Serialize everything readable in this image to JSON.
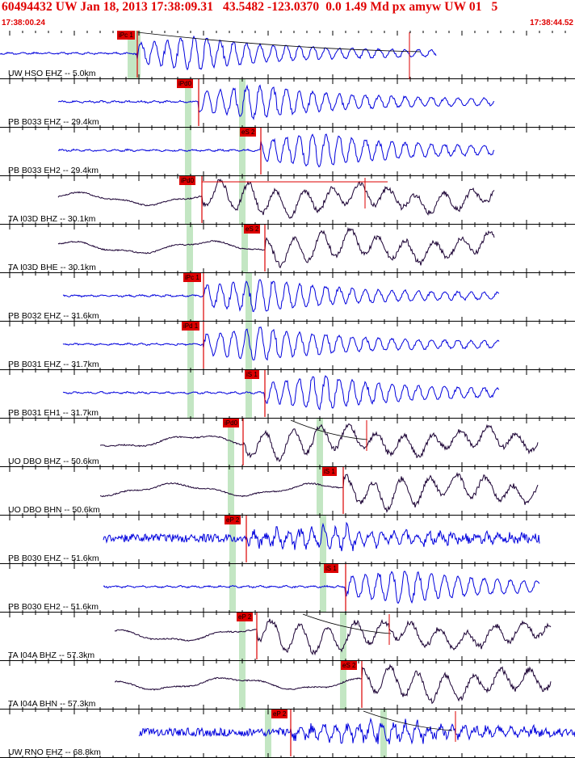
{
  "header": {
    "title": "60494432 UW Jan 18, 2013 17:38:09.31   43.5482 -123.0370  0.0 1.49 Md px amyw UW 01   5",
    "start_time": "17:38:00.24",
    "end_time": "17:38:44.52"
  },
  "colors": {
    "header_text": "#e00000",
    "pick_flag": "#dd0000",
    "pick_line": "#dd0000",
    "window_band": "#c3e6c3",
    "trace_blue": "#0000dd",
    "trace_dark": "#1a0033",
    "grid": "#000000"
  },
  "traces": [
    {
      "label": "UW HSO EHZ -- 5.0km",
      "pick": "iPc 1",
      "color": "blue",
      "style": "hf"
    },
    {
      "label": "PB B033 EHZ -- 29.4km",
      "pick": "iPd0",
      "color": "blue",
      "style": "hf"
    },
    {
      "label": "PB B033 EH2 -- 29.4km",
      "pick": "eS 2",
      "color": "blue",
      "style": "hf"
    },
    {
      "label": "TA I03D BHZ -- 30.1km",
      "pick": "iPd0",
      "color": "dark",
      "style": "lf"
    },
    {
      "label": "TA I03D BHE -- 30.1km",
      "pick": "eS 2",
      "color": "dark",
      "style": "lf"
    },
    {
      "label": "PB B032 EHZ -- 31.6km",
      "pick": "iPc 1",
      "color": "blue",
      "style": "hf"
    },
    {
      "label": "PB B031 EHZ -- 31.7km",
      "pick": "iPd 1",
      "color": "blue",
      "style": "hf"
    },
    {
      "label": "PB B031 EH1 -- 31.7km",
      "pick": "iS 1",
      "color": "blue",
      "style": "hf"
    },
    {
      "label": "UO DBO BHZ -- 50.6km",
      "pick": "iPd0",
      "color": "dark",
      "style": "lf"
    },
    {
      "label": "UO DBO BHN -- 50.6km",
      "pick": "iS 1",
      "color": "dark",
      "style": "lf"
    },
    {
      "label": "PB B030 EHZ -- 51.6km",
      "pick": "eP 2",
      "color": "blue",
      "style": "noisy"
    },
    {
      "label": "PB B030 EH2 -- 51.6km",
      "pick": "iS 1",
      "color": "blue",
      "style": "hf"
    },
    {
      "label": "TA I04A BHZ -- 57.3km",
      "pick": "eP 2",
      "color": "dark",
      "style": "lf"
    },
    {
      "label": "TA I04A BHN -- 57.3km",
      "pick": "eS 2",
      "color": "dark",
      "style": "lf"
    },
    {
      "label": "UW RNO EHZ -- 68.8km",
      "pick": "eP 2",
      "color": "blue",
      "style": "noisy"
    }
  ]
}
